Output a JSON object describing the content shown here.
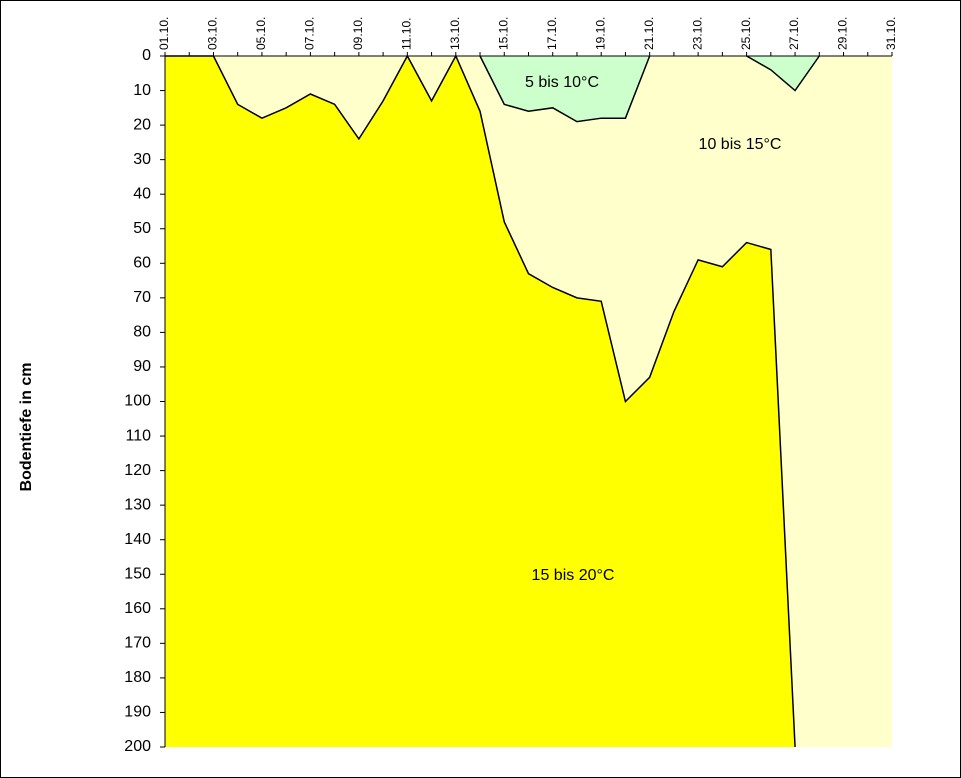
{
  "chart_data": {
    "type": "area",
    "y_label": "Bodentiefe in cm",
    "categories": [
      "01.10.",
      null,
      "03.10.",
      null,
      "05.10.",
      null,
      "07.10.",
      null,
      "09.10.",
      null,
      "11.10.",
      null,
      "13.10.",
      null,
      "15.10.",
      null,
      "17.10.",
      null,
      "19.10.",
      null,
      "21.10.",
      null,
      "23.10.",
      null,
      "25.10.",
      null,
      "27.10.",
      null,
      "29.10.",
      null,
      "31.10."
    ],
    "ylim": [
      0,
      200
    ],
    "y_inverted": true,
    "yticks": [
      0,
      10,
      20,
      30,
      40,
      50,
      60,
      70,
      80,
      90,
      100,
      110,
      120,
      130,
      140,
      150,
      160,
      170,
      180,
      190,
      200
    ],
    "background": {
      "name": "10 bis 15°C",
      "color": "#ffffcc"
    },
    "series": [
      {
        "name": "15 bis 20°C",
        "color": "#ffff00",
        "fill_to": "bottom",
        "values": [
          0,
          0,
          0,
          14,
          18,
          15,
          11,
          14,
          24,
          13,
          0,
          13,
          0,
          16,
          48,
          63,
          67,
          70,
          71,
          100,
          93,
          74,
          59,
          61,
          54,
          56,
          200,
          null,
          null,
          null,
          null
        ]
      },
      {
        "name": "5 bis 10°C",
        "color": "#ccffcc",
        "fill_to": "top",
        "values": [
          null,
          null,
          null,
          null,
          null,
          null,
          null,
          null,
          null,
          null,
          null,
          null,
          null,
          0,
          14,
          16,
          15,
          19,
          18,
          18,
          0,
          null,
          null,
          null,
          0,
          4,
          10,
          0,
          null,
          null,
          null
        ]
      }
    ]
  }
}
